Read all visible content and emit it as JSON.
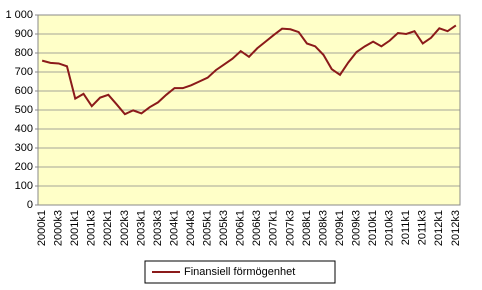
{
  "chart_data": {
    "type": "line",
    "categories": [
      "2000k1",
      null,
      "2000k3",
      null,
      "2001k1",
      null,
      "2001k3",
      null,
      "2002k1",
      null,
      "2002k3",
      null,
      "2003k1",
      null,
      "2003k3",
      null,
      "2004k1",
      null,
      "2004k3",
      null,
      "2005k1",
      null,
      "2005k3",
      null,
      "2006k1",
      null,
      "2006k3",
      null,
      "2007k1",
      null,
      "2007k3",
      null,
      "2008k1",
      null,
      "2008k3",
      null,
      "2009k1",
      null,
      "2009k3",
      null,
      "2010k1",
      null,
      "2010k3",
      null,
      "2011k1",
      null,
      "2011k3",
      null,
      "2012k1",
      null,
      "2012k3"
    ],
    "series": [
      {
        "name": "Finansiell förmögenhet",
        "color": "#8b1a1a",
        "values": [
          760,
          748,
          745,
          730,
          560,
          585,
          520,
          565,
          580,
          530,
          478,
          498,
          482,
          515,
          540,
          580,
          615,
          615,
          630,
          650,
          670,
          710,
          740,
          770,
          810,
          780,
          825,
          860,
          895,
          928,
          925,
          910,
          850,
          835,
          790,
          715,
          685,
          750,
          805,
          835,
          860,
          835,
          865,
          905,
          900,
          915,
          850,
          880,
          930,
          915,
          945
        ]
      }
    ],
    "ylim": [
      0,
      1000
    ],
    "yticks": [
      0,
      100,
      200,
      300,
      400,
      500,
      600,
      700,
      800,
      900,
      {
        "value": 1000,
        "label": "1 000"
      }
    ],
    "grid": true,
    "legend": "bottom",
    "background": "#ffffc8"
  }
}
